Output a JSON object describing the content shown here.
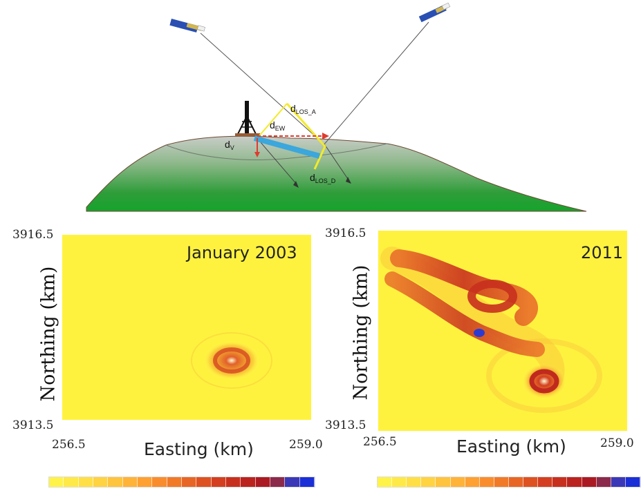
{
  "diagram": {
    "labels": {
      "los_a": "d",
      "los_a_sub": "LOS_A",
      "ew": "d",
      "ew_sub": "EW",
      "v": "d",
      "v_sub": "V",
      "los_d": "d",
      "los_d_sub": "LOS_D"
    }
  },
  "panels": [
    {
      "title": "January 2003",
      "y_top": "3916.5",
      "y_bottom": "3913.5",
      "x_left": "256.5",
      "x_right": "259.0",
      "xlabel": "Easting (km)",
      "ylabel": "Northing (km)"
    },
    {
      "title": "2011",
      "y_top": "3916.5",
      "y_bottom": "3913.5",
      "x_left": "256.5",
      "x_right": "259.0",
      "xlabel": "Easting (km)",
      "ylabel": "Northing (km)"
    }
  ],
  "colorbar": {
    "colors": [
      "#fff34a",
      "#ffe948",
      "#ffdf45",
      "#ffd342",
      "#ffc43d",
      "#ffb338",
      "#ffa032",
      "#f98d2d",
      "#f17a29",
      "#e86625",
      "#de5222",
      "#d33f20",
      "#c8301e",
      "#bb231f",
      "#ab1a22",
      "#8c2a4b",
      "#3b38b8",
      "#1b2fd6"
    ]
  }
}
